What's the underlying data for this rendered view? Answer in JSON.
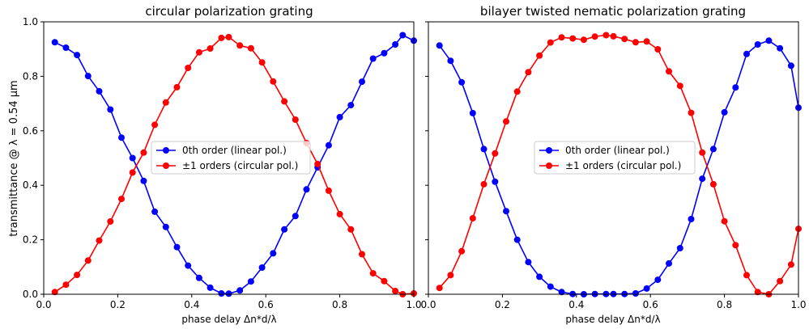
{
  "figure": {
    "ylabel": "transmittance @ λ = 0.54 μm"
  },
  "chart_data": [
    {
      "type": "line",
      "title": "circular polarization grating",
      "xlabel": "phase delay Δn*d/λ",
      "ylabel": "transmittance @ λ = 0.54 μm",
      "xlim": [
        0,
        1.0
      ],
      "ylim": [
        0,
        1.0
      ],
      "x_ticks": [
        "0.0",
        "0.2",
        "0.4",
        "0.6",
        "0.8",
        "1.0"
      ],
      "y_ticks": [
        "0.0",
        "0.2",
        "0.4",
        "0.6",
        "0.8",
        "1.0"
      ],
      "grid": false,
      "legend_position": "center",
      "x": [
        0.03,
        0.06,
        0.09,
        0.12,
        0.15,
        0.18,
        0.21,
        0.24,
        0.27,
        0.3,
        0.33,
        0.36,
        0.39,
        0.42,
        0.45,
        0.48,
        0.5,
        0.53,
        0.56,
        0.59,
        0.62,
        0.65,
        0.68,
        0.71,
        0.74,
        0.77,
        0.8,
        0.83,
        0.86,
        0.89,
        0.92,
        0.95,
        0.97,
        1.0
      ],
      "series": [
        {
          "name": "0th order (linear pol.)",
          "color": "#0000ff",
          "values": [
            0.925,
            0.905,
            0.878,
            0.801,
            0.745,
            0.678,
            0.575,
            0.5,
            0.416,
            0.303,
            0.247,
            0.173,
            0.105,
            0.06,
            0.024,
            0.003,
            0.002,
            0.014,
            0.047,
            0.098,
            0.15,
            0.238,
            0.287,
            0.385,
            0.466,
            0.547,
            0.65,
            0.694,
            0.78,
            0.865,
            0.885,
            0.917,
            0.951,
            0.931
          ]
        },
        {
          "name": "±1 orders (circular pol.)",
          "color": "#ff0000",
          "values": [
            0.008,
            0.035,
            0.071,
            0.124,
            0.197,
            0.267,
            0.35,
            0.447,
            0.52,
            0.622,
            0.704,
            0.76,
            0.831,
            0.888,
            0.902,
            0.941,
            0.944,
            0.913,
            0.903,
            0.851,
            0.781,
            0.708,
            0.641,
            0.555,
            0.478,
            0.38,
            0.294,
            0.238,
            0.147,
            0.077,
            0.048,
            0.012,
            0.0,
            0.003
          ]
        }
      ]
    },
    {
      "type": "line",
      "title": "bilayer twisted nematic polarization grating",
      "xlabel": "phase delay Δn*d/λ",
      "xlim": [
        0,
        1.0
      ],
      "ylim": [
        0,
        1.0
      ],
      "x_ticks": [
        "0.0",
        "0.2",
        "0.4",
        "0.6",
        "0.8",
        "1.0"
      ],
      "grid": false,
      "legend_position": "center",
      "x": [
        0.03,
        0.06,
        0.09,
        0.12,
        0.15,
        0.18,
        0.21,
        0.24,
        0.27,
        0.3,
        0.33,
        0.36,
        0.39,
        0.42,
        0.45,
        0.48,
        0.5,
        0.53,
        0.56,
        0.59,
        0.62,
        0.65,
        0.68,
        0.71,
        0.74,
        0.77,
        0.8,
        0.83,
        0.86,
        0.89,
        0.92,
        0.95,
        0.98,
        1.0
      ],
      "series": [
        {
          "name": "0th order (linear pol.)",
          "color": "#0000ff",
          "values": [
            0.913,
            0.857,
            0.778,
            0.665,
            0.533,
            0.413,
            0.305,
            0.2,
            0.118,
            0.064,
            0.028,
            0.008,
            0.001,
            0.0,
            0.001,
            0.001,
            0.001,
            0.001,
            0.003,
            0.021,
            0.053,
            0.113,
            0.169,
            0.276,
            0.424,
            0.533,
            0.668,
            0.759,
            0.882,
            0.917,
            0.931,
            0.903,
            0.839,
            0.685
          ]
        },
        {
          "name": "±1 orders (circular pol.)",
          "color": "#ff0000",
          "values": [
            0.023,
            0.07,
            0.158,
            0.279,
            0.404,
            0.517,
            0.634,
            0.744,
            0.815,
            0.876,
            0.924,
            0.943,
            0.939,
            0.934,
            0.946,
            0.951,
            0.947,
            0.937,
            0.925,
            0.928,
            0.899,
            0.818,
            0.765,
            0.666,
            0.52,
            0.404,
            0.268,
            0.18,
            0.07,
            0.008,
            0.0,
            0.048,
            0.109,
            0.24
          ]
        }
      ]
    }
  ]
}
